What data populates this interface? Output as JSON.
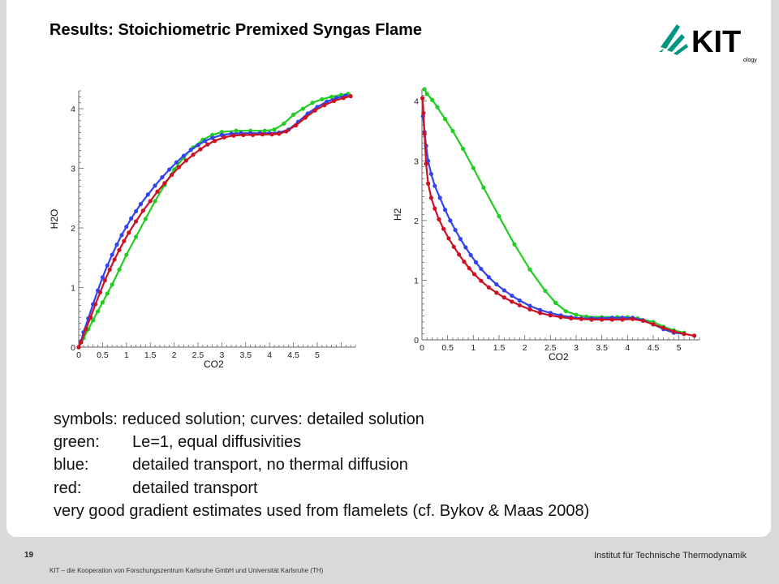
{
  "slide": {
    "title": "Results: Stoichiometric Premixed Syngas Flame",
    "page_number": "19",
    "institute": "Institut für Technische Thermodynamik",
    "footer": "KIT – die Kooperation von Forschungszentrum Karlsruhe GmbH und Universität Karlsruhe (TH)",
    "logo_text": "KIT",
    "logo_subtext": "ology"
  },
  "caption": {
    "line1": "symbols: reduced solution; curves: detailed solution",
    "green_key": "green:",
    "green_text": "Le=1, equal diffusivities",
    "blue_key": "blue:",
    "blue_text": "detailed transport, no thermal diffusion",
    "red_key": "red:",
    "red_text": "detailed transport",
    "line5": "very good gradient estimates used from flamelets (cf. Bykov & Maas 2008)"
  },
  "colors": {
    "green": "#22cc22",
    "blue": "#3344ee",
    "red": "#cc1122"
  },
  "chart_data": [
    {
      "type": "line",
      "xlabel": "CO2",
      "ylabel": "H2O",
      "xlim": [
        0,
        5.8
      ],
      "ylim": [
        0,
        4.3
      ],
      "xticks": [
        "0",
        "0.5",
        "1",
        "1.5",
        "2",
        "2.5",
        "3",
        "3.5",
        "4",
        "4.5",
        "5"
      ],
      "yticks": [
        "0",
        "1",
        "2",
        "3",
        "4"
      ],
      "series": [
        {
          "color": "green",
          "x": [
            0,
            0.1,
            0.2,
            0.3,
            0.4,
            0.5,
            0.6,
            0.7,
            0.85,
            1.0,
            1.2,
            1.4,
            1.6,
            1.8,
            2.0,
            2.2,
            2.4,
            2.6,
            2.8,
            3.0,
            3.3,
            3.6,
            3.9,
            4.1,
            4.3,
            4.5,
            4.7,
            4.9,
            5.1,
            5.3,
            5.5,
            5.65
          ],
          "y": [
            0,
            0.15,
            0.3,
            0.45,
            0.6,
            0.75,
            0.9,
            1.05,
            1.3,
            1.55,
            1.85,
            2.15,
            2.45,
            2.72,
            2.98,
            3.18,
            3.35,
            3.48,
            3.56,
            3.61,
            3.63,
            3.63,
            3.63,
            3.65,
            3.75,
            3.9,
            4.0,
            4.1,
            4.16,
            4.2,
            4.23,
            4.25
          ]
        },
        {
          "color": "blue",
          "x": [
            0,
            0.05,
            0.1,
            0.2,
            0.3,
            0.4,
            0.5,
            0.6,
            0.7,
            0.8,
            0.9,
            1.0,
            1.1,
            1.2,
            1.3,
            1.45,
            1.6,
            1.75,
            1.9,
            2.05,
            2.2,
            2.35,
            2.5,
            2.65,
            2.8,
            3.0,
            3.2,
            3.4,
            3.6,
            3.8,
            4.0,
            4.2,
            4.4,
            4.6,
            4.8,
            5.0,
            5.2,
            5.4,
            5.6
          ],
          "y": [
            0,
            0.1,
            0.25,
            0.48,
            0.72,
            0.95,
            1.17,
            1.37,
            1.55,
            1.72,
            1.88,
            2.02,
            2.16,
            2.28,
            2.4,
            2.56,
            2.71,
            2.85,
            2.98,
            3.1,
            3.21,
            3.31,
            3.39,
            3.46,
            3.51,
            3.56,
            3.58,
            3.59,
            3.59,
            3.59,
            3.59,
            3.6,
            3.65,
            3.78,
            3.92,
            4.03,
            4.12,
            4.18,
            4.22
          ]
        },
        {
          "color": "red",
          "x": [
            0,
            0.05,
            0.15,
            0.25,
            0.35,
            0.45,
            0.55,
            0.65,
            0.75,
            0.85,
            0.95,
            1.05,
            1.2,
            1.35,
            1.5,
            1.65,
            1.8,
            1.95,
            2.1,
            2.25,
            2.4,
            2.55,
            2.7,
            2.85,
            3.05,
            3.25,
            3.45,
            3.65,
            3.85,
            4.05,
            4.2,
            4.35,
            4.55,
            4.75,
            4.95,
            5.15,
            5.35,
            5.55,
            5.7
          ],
          "y": [
            0,
            0.08,
            0.3,
            0.5,
            0.72,
            0.92,
            1.12,
            1.3,
            1.47,
            1.63,
            1.78,
            1.92,
            2.11,
            2.29,
            2.45,
            2.61,
            2.75,
            2.89,
            3.02,
            3.13,
            3.23,
            3.32,
            3.4,
            3.46,
            3.52,
            3.55,
            3.56,
            3.56,
            3.57,
            3.57,
            3.58,
            3.62,
            3.72,
            3.85,
            3.97,
            4.06,
            4.13,
            4.18,
            4.21
          ]
        }
      ]
    },
    {
      "type": "line",
      "xlabel": "CO2",
      "ylabel": "H2",
      "xlim": [
        0,
        5.4
      ],
      "ylim": [
        0,
        4.2
      ],
      "xticks": [
        "0",
        "0.5",
        "1",
        "1.5",
        "2",
        "2.5",
        "3",
        "3.5",
        "4",
        "4.5",
        "5"
      ],
      "yticks": [
        "0",
        "1",
        "2",
        "3",
        "4"
      ],
      "series": [
        {
          "color": "green",
          "x": [
            0.05,
            0.1,
            0.2,
            0.3,
            0.45,
            0.6,
            0.8,
            1.0,
            1.2,
            1.5,
            1.8,
            2.1,
            2.4,
            2.6,
            2.8,
            3.0,
            3.2,
            3.5,
            3.8,
            4.0,
            4.2,
            4.5,
            4.7,
            4.9,
            5.1
          ],
          "y": [
            4.2,
            4.12,
            4.02,
            3.9,
            3.7,
            3.5,
            3.2,
            2.88,
            2.55,
            2.07,
            1.6,
            1.18,
            0.82,
            0.62,
            0.48,
            0.42,
            0.39,
            0.38,
            0.38,
            0.38,
            0.36,
            0.3,
            0.22,
            0.16,
            0.12
          ]
        },
        {
          "color": "blue",
          "x": [
            0.02,
            0.05,
            0.08,
            0.12,
            0.18,
            0.25,
            0.35,
            0.45,
            0.55,
            0.65,
            0.75,
            0.85,
            0.95,
            1.05,
            1.15,
            1.3,
            1.45,
            1.6,
            1.75,
            1.9,
            2.1,
            2.3,
            2.5,
            2.7,
            2.9,
            3.1,
            3.3,
            3.5,
            3.7,
            3.9,
            4.1,
            4.3,
            4.5,
            4.7,
            4.9,
            5.1
          ],
          "y": [
            3.75,
            3.48,
            3.25,
            3.0,
            2.78,
            2.58,
            2.38,
            2.18,
            2.0,
            1.84,
            1.69,
            1.55,
            1.42,
            1.3,
            1.19,
            1.05,
            0.93,
            0.83,
            0.74,
            0.66,
            0.57,
            0.5,
            0.45,
            0.41,
            0.38,
            0.36,
            0.36,
            0.36,
            0.37,
            0.37,
            0.37,
            0.33,
            0.26,
            0.18,
            0.12,
            0.1
          ]
        },
        {
          "color": "red",
          "x": [
            0.01,
            0.03,
            0.05,
            0.08,
            0.12,
            0.18,
            0.25,
            0.33,
            0.42,
            0.52,
            0.62,
            0.72,
            0.82,
            0.92,
            1.02,
            1.15,
            1.3,
            1.45,
            1.6,
            1.75,
            1.9,
            2.1,
            2.3,
            2.5,
            2.7,
            2.9,
            3.1,
            3.3,
            3.5,
            3.7,
            3.9,
            4.1,
            4.3,
            4.5,
            4.7,
            4.9,
            5.1,
            5.3
          ],
          "y": [
            4.05,
            3.8,
            3.45,
            2.95,
            2.62,
            2.38,
            2.2,
            2.02,
            1.86,
            1.7,
            1.56,
            1.43,
            1.31,
            1.2,
            1.1,
            0.99,
            0.88,
            0.79,
            0.71,
            0.64,
            0.58,
            0.51,
            0.45,
            0.41,
            0.38,
            0.36,
            0.35,
            0.34,
            0.34,
            0.34,
            0.34,
            0.35,
            0.32,
            0.26,
            0.2,
            0.14,
            0.1,
            0.07
          ]
        }
      ]
    }
  ]
}
